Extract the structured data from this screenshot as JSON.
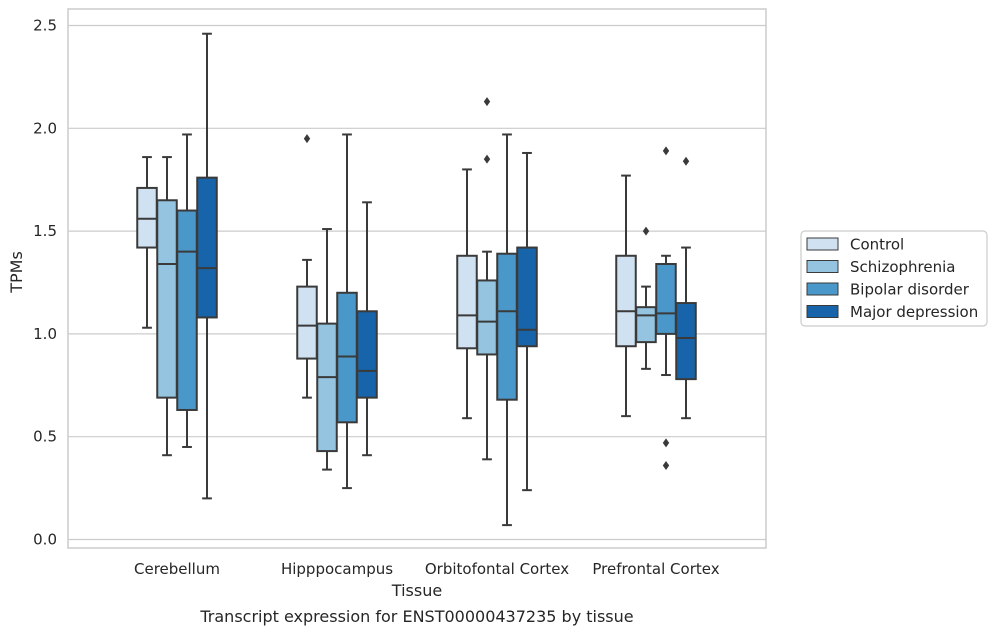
{
  "caption": "Transcript expression for ENST00000437235 by tissue",
  "chart_data": {
    "type": "box",
    "xlabel": "Tissue",
    "ylabel": "TPMs",
    "ylim": [
      -0.04,
      2.59
    ],
    "yticks": [
      "0.0",
      "0.5",
      "1.0",
      "1.5",
      "2.0",
      "2.5"
    ],
    "grid": true,
    "legend_position": "right",
    "categories": [
      "Cerebellum",
      "Hipppocampus",
      "Orbitofontal Cortex",
      "Prefrontal Cortex"
    ],
    "series": [
      {
        "name": "Control",
        "color": "#d0e1f2",
        "boxes": [
          {
            "whislo": 1.03,
            "q1": 1.42,
            "med": 1.56,
            "q3": 1.71,
            "whishi": 1.86,
            "fliers": []
          },
          {
            "whislo": 0.69,
            "q1": 0.88,
            "med": 1.04,
            "q3": 1.23,
            "whishi": 1.36,
            "fliers": [
              1.95
            ]
          },
          {
            "whislo": 0.59,
            "q1": 0.93,
            "med": 1.09,
            "q3": 1.38,
            "whishi": 1.8,
            "fliers": []
          },
          {
            "whislo": 0.6,
            "q1": 0.94,
            "med": 1.11,
            "q3": 1.38,
            "whishi": 1.77,
            "fliers": []
          }
        ]
      },
      {
        "name": "Schizophrenia",
        "color": "#94c4df",
        "boxes": [
          {
            "whislo": 0.41,
            "q1": 0.69,
            "med": 1.34,
            "q3": 1.65,
            "whishi": 1.86,
            "fliers": []
          },
          {
            "whislo": 0.34,
            "q1": 0.43,
            "med": 0.79,
            "q3": 1.05,
            "whishi": 1.51,
            "fliers": []
          },
          {
            "whislo": 0.39,
            "q1": 0.9,
            "med": 1.06,
            "q3": 1.26,
            "whishi": 1.4,
            "fliers": [
              1.85,
              2.13
            ]
          },
          {
            "whislo": 0.83,
            "q1": 0.96,
            "med": 1.09,
            "q3": 1.13,
            "whishi": 1.23,
            "fliers": [
              1.5
            ]
          }
        ]
      },
      {
        "name": "Bipolar disorder",
        "color": "#4a98c9",
        "boxes": [
          {
            "whislo": 0.45,
            "q1": 0.63,
            "med": 1.4,
            "q3": 1.6,
            "whishi": 1.97,
            "fliers": []
          },
          {
            "whislo": 0.25,
            "q1": 0.57,
            "med": 0.89,
            "q3": 1.2,
            "whishi": 1.97,
            "fliers": []
          },
          {
            "whislo": 0.07,
            "q1": 0.68,
            "med": 1.11,
            "q3": 1.39,
            "whishi": 1.97,
            "fliers": []
          },
          {
            "whislo": 0.8,
            "q1": 1.0,
            "med": 1.1,
            "q3": 1.34,
            "whishi": 1.38,
            "fliers": [
              0.47,
              0.36,
              1.89
            ]
          }
        ]
      },
      {
        "name": "Major depression",
        "color": "#1764ab",
        "boxes": [
          {
            "whislo": 0.2,
            "q1": 1.08,
            "med": 1.32,
            "q3": 1.76,
            "whishi": 2.46,
            "fliers": []
          },
          {
            "whislo": 0.41,
            "q1": 0.69,
            "med": 0.82,
            "q3": 1.11,
            "whishi": 1.64,
            "fliers": []
          },
          {
            "whislo": 0.24,
            "q1": 0.94,
            "med": 1.02,
            "q3": 1.42,
            "whishi": 1.88,
            "fliers": []
          },
          {
            "whislo": 0.59,
            "q1": 0.78,
            "med": 0.98,
            "q3": 1.15,
            "whishi": 1.42,
            "fliers": [
              1.84
            ]
          }
        ]
      }
    ]
  }
}
